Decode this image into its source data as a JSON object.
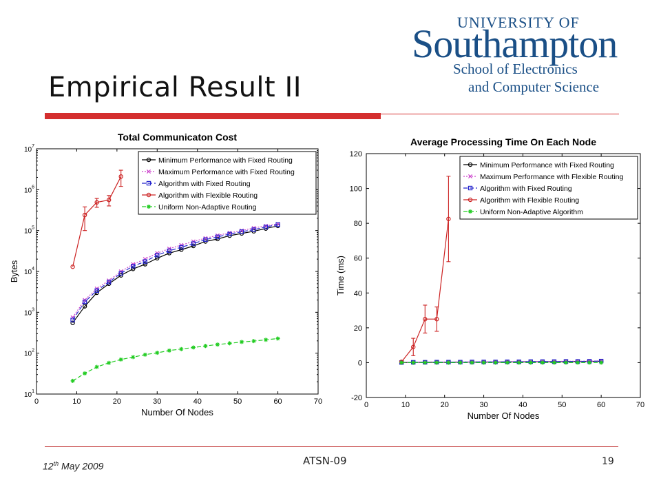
{
  "slide": {
    "title": "Empirical Result II",
    "logo": {
      "line1": "UNIVERSITY OF",
      "line2": "Southampton",
      "line3": "School of Electronics",
      "line4": "and Computer Science"
    },
    "footer": {
      "date_day": "12",
      "date_sup": "th",
      "date_rest": " May 2009",
      "center": "ATSN-09",
      "page": "19"
    }
  },
  "chart_data": [
    {
      "type": "line",
      "title": "Total Communicaton Cost",
      "xlabel": "Number Of Nodes",
      "ylabel": "Bytes",
      "xlim": [
        0,
        70
      ],
      "xticks": [
        "0",
        "10",
        "20",
        "30",
        "40",
        "50",
        "60",
        "70"
      ],
      "ylim": [
        10,
        10000000
      ],
      "yscale": "log",
      "yticks": [
        {
          "base": "10",
          "exp": "1"
        },
        {
          "base": "10",
          "exp": "2"
        },
        {
          "base": "10",
          "exp": "3"
        },
        {
          "base": "10",
          "exp": "4"
        },
        {
          "base": "10",
          "exp": "5"
        },
        {
          "base": "10",
          "exp": "6"
        },
        {
          "base": "10",
          "exp": "7"
        }
      ],
      "legend_position": "top-right",
      "series": [
        {
          "name": "Minimum Performance with Fixed Routing",
          "color": "#000000",
          "marker": "circle",
          "dash": "",
          "x": [
            9,
            12,
            15,
            18,
            21,
            24,
            27,
            30,
            33,
            36,
            39,
            42,
            45,
            48,
            51,
            54,
            57,
            60
          ],
          "y": [
            550,
            1400,
            3000,
            5000,
            8000,
            11500,
            15000,
            21000,
            28000,
            34000,
            42000,
            54000,
            62000,
            75000,
            85000,
            96000,
            112000,
            130000
          ]
        },
        {
          "name": "Maximum Performance with Fixed Routing",
          "color": "#cc44cc",
          "marker": "x",
          "dash": "2,2",
          "x": [
            9,
            12,
            15,
            18,
            21,
            24,
            27,
            30,
            33,
            36,
            39,
            42,
            45,
            48,
            51,
            54,
            57,
            60
          ],
          "y": [
            750,
            2000,
            3800,
            6000,
            10000,
            15000,
            20000,
            28000,
            36000,
            44000,
            54000,
            65000,
            76000,
            88000,
            100000,
            116000,
            130000,
            145000
          ]
        },
        {
          "name": "Algorithm with Fixed Routing",
          "color": "#2222cc",
          "marker": "square",
          "dash": "6,3",
          "x": [
            9,
            12,
            15,
            18,
            21,
            24,
            27,
            30,
            33,
            36,
            39,
            42,
            45,
            48,
            51,
            54,
            57,
            60
          ],
          "y": [
            650,
            1800,
            3400,
            5500,
            9000,
            13500,
            17500,
            25000,
            32000,
            39000,
            48000,
            60000,
            70000,
            82000,
            94000,
            105000,
            122000,
            140000
          ]
        },
        {
          "name": "Algorithm with Flexible Routing",
          "color": "#cc2222",
          "marker": "circle",
          "dash": "",
          "x": [
            9,
            12,
            15,
            18,
            21
          ],
          "y": [
            13000,
            240000,
            490000,
            560000,
            2100000
          ],
          "err": [
            0,
            140000,
            120000,
            160000,
            900000
          ]
        },
        {
          "name": "Uniform Non-Adaptive Routing",
          "color": "#22cc22",
          "marker": "star",
          "dash": "6,3",
          "x": [
            9,
            12,
            15,
            18,
            21,
            24,
            27,
            30,
            33,
            36,
            39,
            42,
            45,
            48,
            51,
            54,
            57,
            60
          ],
          "y": [
            21,
            32,
            46,
            58,
            70,
            80,
            92,
            102,
            116,
            126,
            138,
            150,
            163,
            174,
            188,
            198,
            212,
            228
          ]
        }
      ]
    },
    {
      "type": "line",
      "title": "Average Processing Time On Each Node",
      "xlabel": "Number Of Nodes",
      "ylabel": "Time (ms)",
      "xlim": [
        0,
        70
      ],
      "xticks": [
        "0",
        "10",
        "20",
        "30",
        "40",
        "50",
        "60",
        "70"
      ],
      "ylim": [
        -20,
        120
      ],
      "yticks": [
        "-20",
        "0",
        "20",
        "40",
        "60",
        "80",
        "100",
        "120"
      ],
      "legend_position": "top-right",
      "series": [
        {
          "name": "Minimum Performance with Fixed Routing",
          "color": "#000000",
          "marker": "circle",
          "dash": "",
          "x": [
            9,
            12,
            15,
            18,
            21,
            24,
            27,
            30,
            33,
            36,
            39,
            42,
            45,
            48,
            51,
            54,
            57,
            60
          ],
          "y": [
            0.1,
            0.1,
            0.2,
            0.2,
            0.2,
            0.3,
            0.3,
            0.3,
            0.3,
            0.4,
            0.4,
            0.5,
            0.5,
            0.5,
            0.6,
            0.6,
            0.7,
            0.8
          ]
        },
        {
          "name": "Maximum Performance with Flexible Routing",
          "color": "#cc44cc",
          "marker": "x",
          "dash": "2,2",
          "x": [
            9,
            12,
            15,
            18,
            21,
            24,
            27,
            30,
            33,
            36,
            39,
            42,
            45,
            48,
            51,
            54,
            57,
            60
          ],
          "y": [
            0.2,
            0.2,
            0.3,
            0.3,
            0.3,
            0.4,
            0.4,
            0.5,
            0.5,
            0.5,
            0.6,
            0.6,
            0.7,
            0.7,
            0.8,
            0.8,
            0.9,
            1.0
          ]
        },
        {
          "name": "Algorithm with Fixed Routing",
          "color": "#2222cc",
          "marker": "square",
          "dash": "6,3",
          "x": [
            9,
            12,
            15,
            18,
            21,
            24,
            27,
            30,
            33,
            36,
            39,
            42,
            45,
            48,
            51,
            54,
            57,
            60
          ],
          "y": [
            0.1,
            0.2,
            0.2,
            0.3,
            0.3,
            0.3,
            0.4,
            0.4,
            0.4,
            0.5,
            0.5,
            0.6,
            0.6,
            0.6,
            0.7,
            0.7,
            0.8,
            0.9
          ]
        },
        {
          "name": "Algorithm with Flexible Routing",
          "color": "#cc2222",
          "marker": "circle",
          "dash": "",
          "x": [
            9,
            12,
            15,
            18,
            21
          ],
          "y": [
            0.5,
            9,
            25,
            25,
            82.5
          ],
          "err": [
            0,
            5,
            8,
            7,
            24.5
          ]
        },
        {
          "name": "Uniform Non-Adaptive Algorithm",
          "color": "#22cc22",
          "marker": "star",
          "dash": "6,3",
          "x": [
            9,
            12,
            15,
            18,
            21,
            24,
            27,
            30,
            33,
            36,
            39,
            42,
            45,
            48,
            51,
            54,
            57,
            60
          ],
          "y": [
            0,
            0,
            0,
            0,
            0,
            0,
            0,
            0,
            0,
            0,
            0,
            0,
            0,
            0,
            0,
            0,
            0,
            0
          ]
        }
      ]
    }
  ]
}
